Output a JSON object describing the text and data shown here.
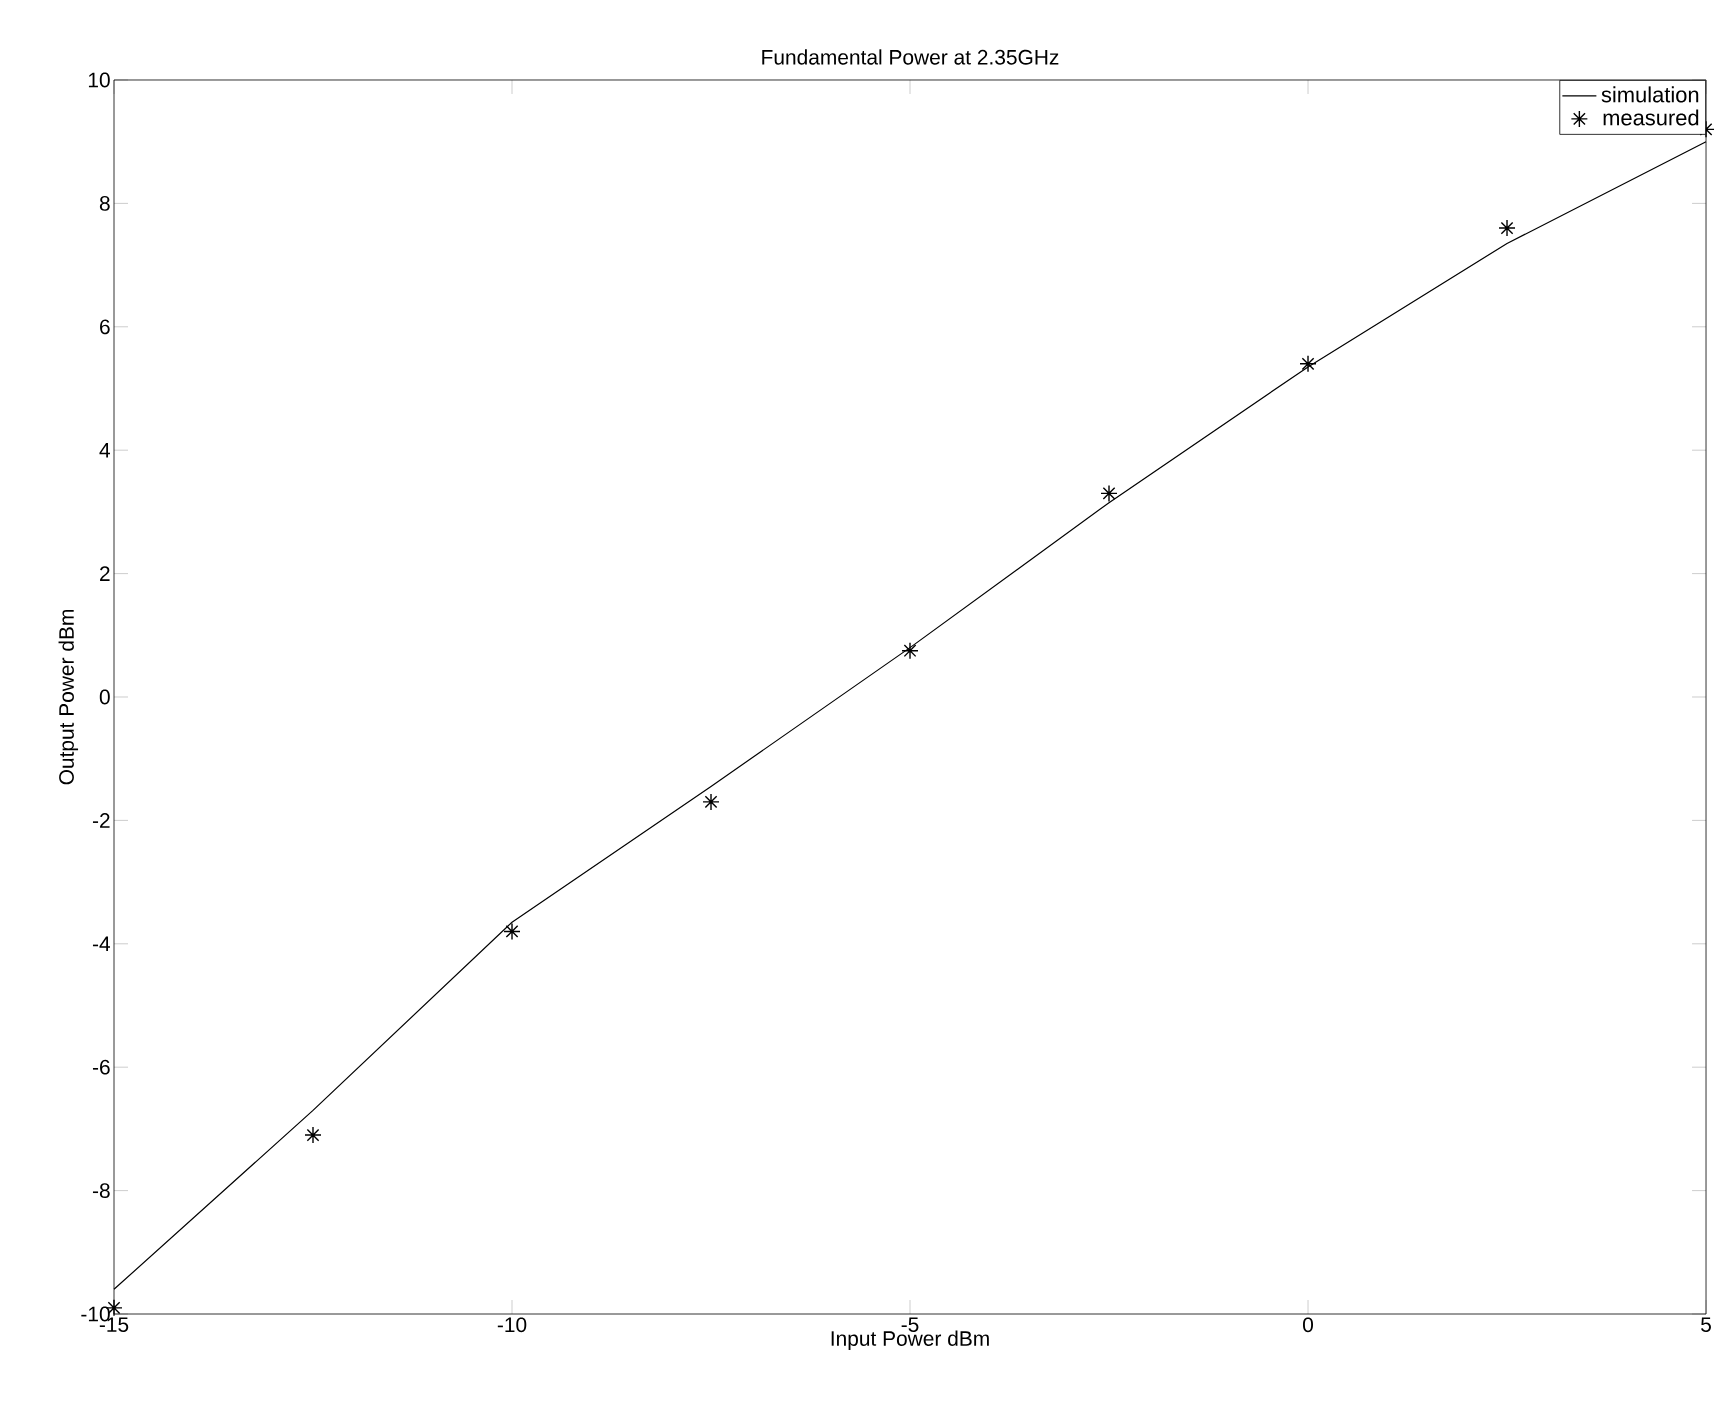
{
  "chart_data": {
    "type": "line",
    "title": "Fundamental Power at 2.35GHz",
    "xlabel": "Input Power dBm",
    "ylabel": "Output Power dBm",
    "x": [
      -15,
      -12.5,
      -10,
      -7.5,
      -5,
      -2.5,
      0,
      2.5,
      5
    ],
    "series": [
      {
        "name": "simulation",
        "color": "#000000",
        "marker": "none",
        "line_style": "solid",
        "values": [
          -9.6,
          -6.7,
          -3.65,
          -1.45,
          0.8,
          3.15,
          5.35,
          7.35,
          9.0
        ]
      },
      {
        "name": "measured",
        "type": "scatter",
        "color": "#000000",
        "marker": "cross",
        "values": [
          -9.9,
          -7.1,
          -3.8,
          -1.7,
          0.75,
          3.3,
          5.4,
          7.6,
          9.2
        ]
      }
    ],
    "xlim": [
      -15,
      5
    ],
    "ylim": [
      -10,
      10
    ],
    "xticks": [
      -15,
      -10,
      -5,
      0,
      5
    ],
    "yticks": [
      -10,
      -8,
      -6,
      -4,
      -2,
      0,
      2,
      4,
      6,
      8,
      10
    ],
    "grid": false,
    "legend": "top right"
  }
}
